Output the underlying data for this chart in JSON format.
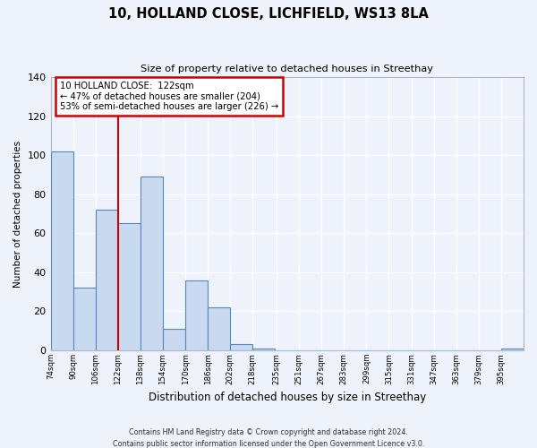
{
  "title": "10, HOLLAND CLOSE, LICHFIELD, WS13 8LA",
  "subtitle": "Size of property relative to detached houses in Streethay",
  "xlabel": "Distribution of detached houses by size in Streethay",
  "ylabel": "Number of detached properties",
  "bin_labels": [
    "74sqm",
    "90sqm",
    "106sqm",
    "122sqm",
    "138sqm",
    "154sqm",
    "170sqm",
    "186sqm",
    "202sqm",
    "218sqm",
    "235sqm",
    "251sqm",
    "267sqm",
    "283sqm",
    "299sqm",
    "315sqm",
    "331sqm",
    "347sqm",
    "363sqm",
    "379sqm",
    "395sqm"
  ],
  "bin_edges": [
    74,
    90,
    106,
    122,
    138,
    154,
    170,
    186,
    202,
    218,
    235,
    251,
    267,
    283,
    299,
    315,
    331,
    347,
    363,
    379,
    395
  ],
  "bar_heights": [
    102,
    32,
    72,
    65,
    89,
    11,
    36,
    22,
    3,
    1,
    0,
    0,
    0,
    0,
    0,
    0,
    0,
    0,
    0,
    0,
    1
  ],
  "bar_color": "#c9d9f0",
  "bar_edge_color": "#5588bb",
  "vline_x": 122,
  "vline_color": "#cc0000",
  "ylim": [
    0,
    140
  ],
  "yticks": [
    0,
    20,
    40,
    60,
    80,
    100,
    120,
    140
  ],
  "annotation_line1": "10 HOLLAND CLOSE:  122sqm",
  "annotation_line2": "← 47% of detached houses are smaller (204)",
  "annotation_line3": "53% of semi-detached houses are larger (226) →",
  "annotation_box_edgecolor": "#cc0000",
  "footer1": "Contains HM Land Registry data © Crown copyright and database right 2024.",
  "footer2": "Contains public sector information licensed under the Open Government Licence v3.0.",
  "background_color": "#eef2fa",
  "axes_background": "#eef2fa",
  "grid_color": "#ffffff",
  "spine_color": "#aabbcc"
}
